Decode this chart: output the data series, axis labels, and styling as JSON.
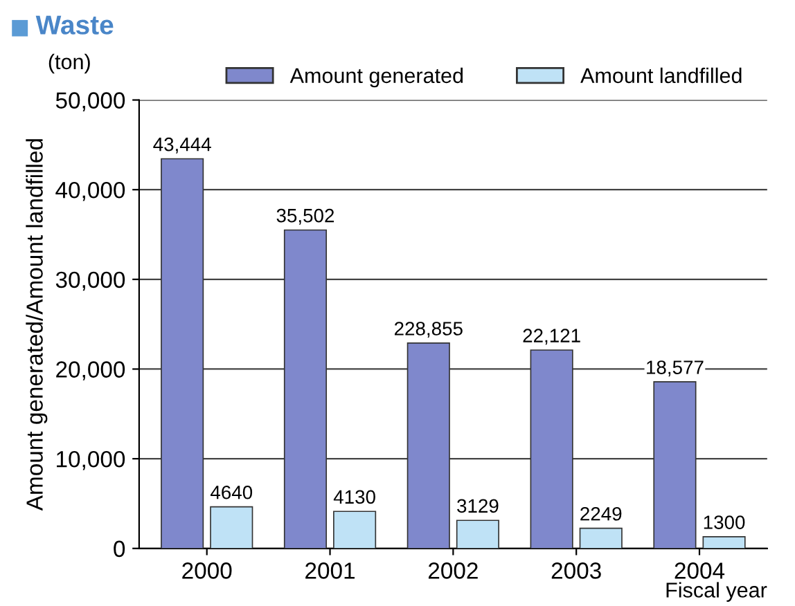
{
  "chart_data": {
    "type": "bar",
    "title": "Waste",
    "ylabel": "Amount generated/Amount landfilled",
    "xlabel": "Fiscal year",
    "annotations": [
      "(ton)",
      {
        "text": "228,855",
        "x": "2002",
        "y": 22900
      }
    ],
    "categories": [
      "2000",
      "2001",
      "2002",
      "2003",
      "2004"
    ],
    "series": [
      {
        "name": "Amount generated",
        "color": "#7f88cc",
        "values": [
          43444,
          35502,
          22900,
          22121,
          18577
        ],
        "value_labels": [
          "43,444",
          "35,502",
          null,
          "22,121",
          "18,577"
        ]
      },
      {
        "name": "Amount landfilled",
        "color": "#bfe2f6",
        "values": [
          4640,
          4130,
          3129,
          2249,
          1300
        ],
        "value_labels": [
          "4640",
          "4130",
          "3129",
          "2249",
          "1300"
        ]
      }
    ],
    "ylim": [
      0,
      50000
    ],
    "yticks": [
      {
        "value": 0,
        "label": "0"
      },
      {
        "value": 10000,
        "label": "10,000"
      },
      {
        "value": 20000,
        "label": "20,000"
      },
      {
        "value": 30000,
        "label": "30,000"
      },
      {
        "value": 40000,
        "label": "40,000"
      },
      {
        "value": 50000,
        "label": "50,000"
      }
    ],
    "grid": "y",
    "legend": "top"
  }
}
